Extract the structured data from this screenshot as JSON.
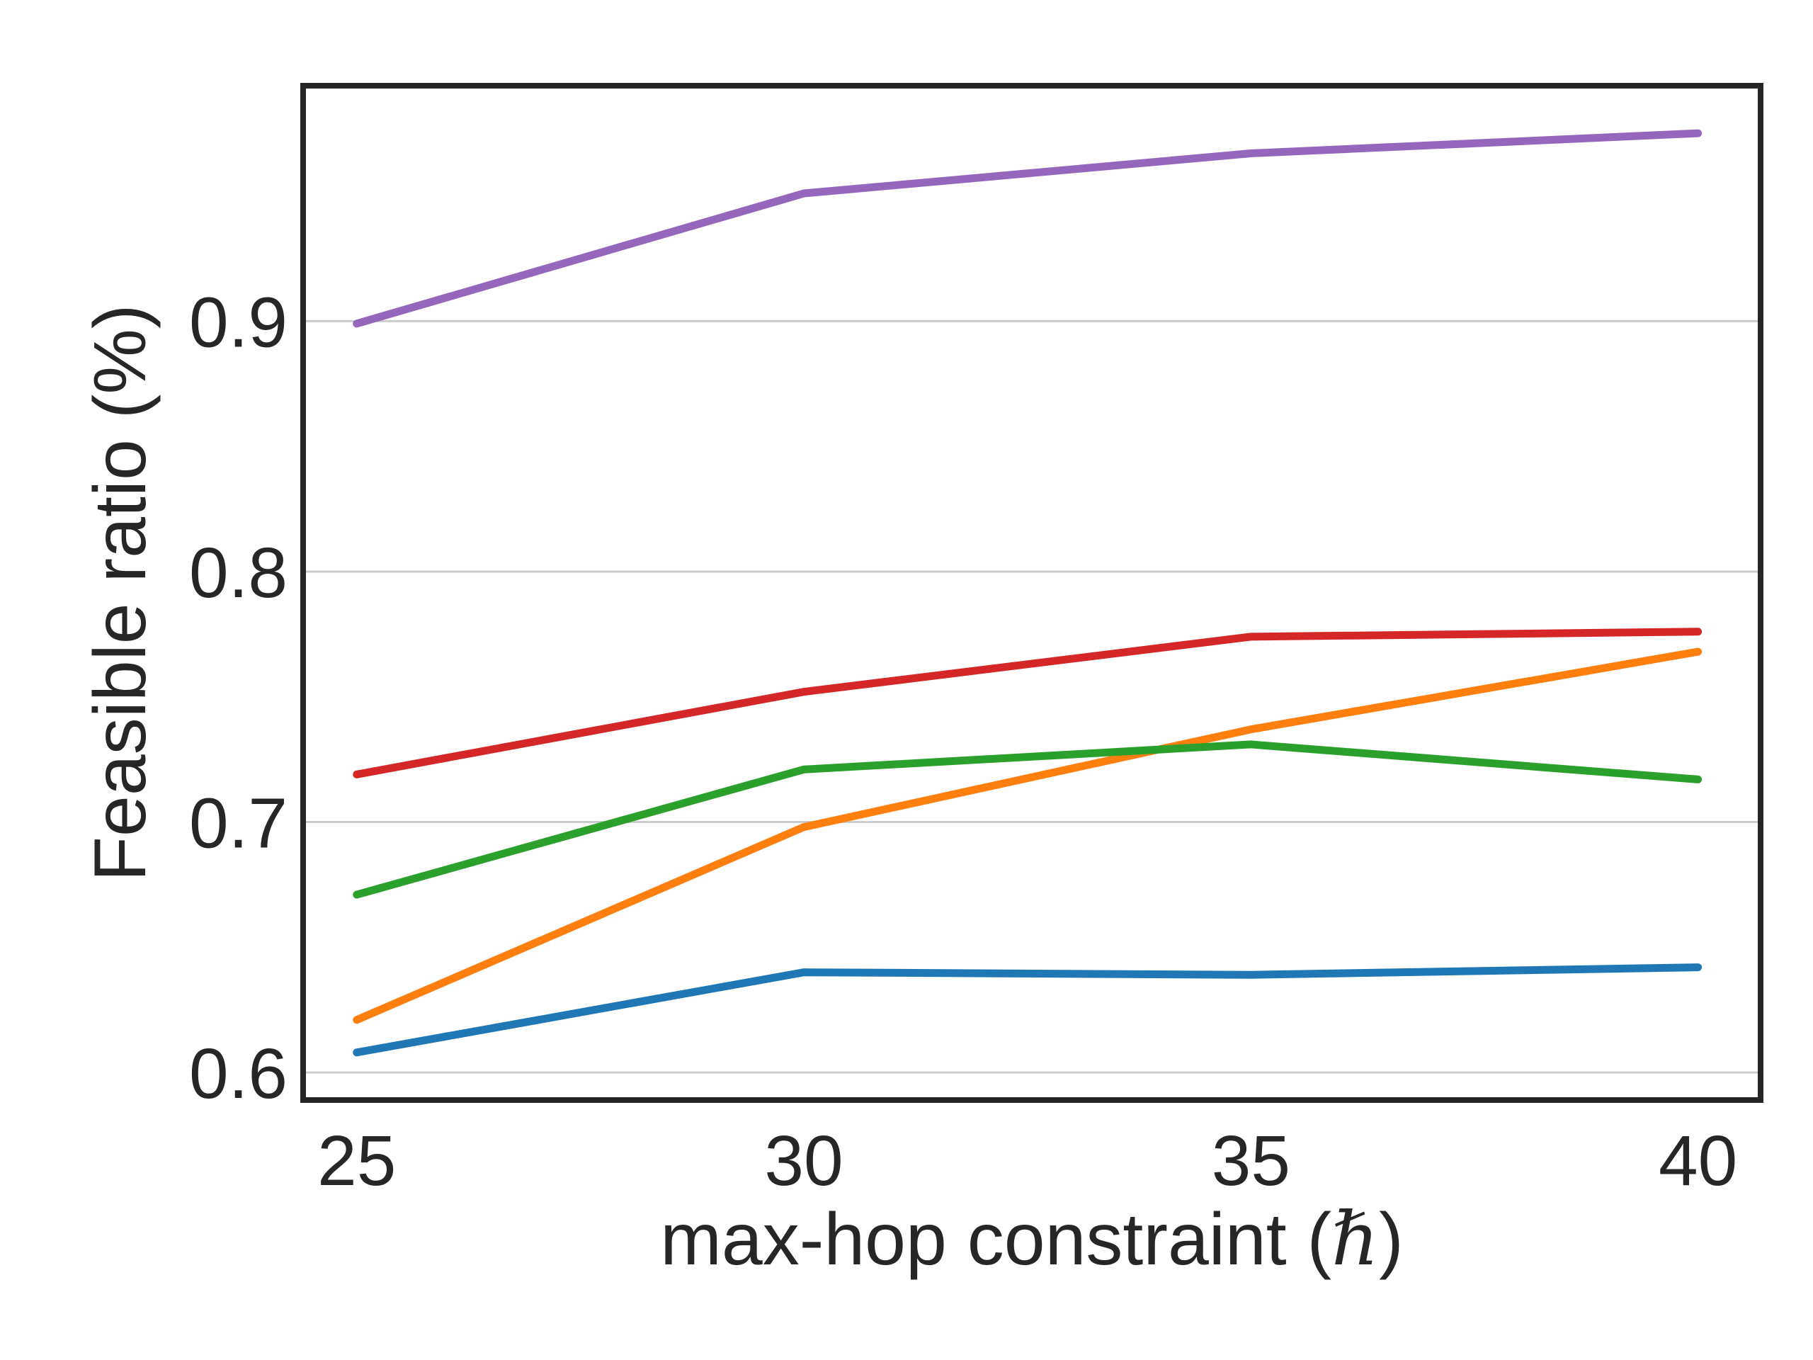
{
  "chart_data": {
    "type": "line",
    "title": "",
    "xlabel_prefix": "max-hop constraint (",
    "xlabel_symbol": "ℏ",
    "xlabel_suffix": ")",
    "ylabel": "Feasible ratio (%)",
    "x": [
      25,
      30,
      35,
      40
    ],
    "x_ticks": [
      "25",
      "30",
      "35",
      "40"
    ],
    "y_ticks": [
      0.6,
      0.7,
      0.8,
      0.9
    ],
    "y_tick_labels": [
      "0.6",
      "0.7",
      "0.8",
      "0.9"
    ],
    "xlim": [
      24.4,
      40.7
    ],
    "ylim": [
      0.589,
      0.994
    ],
    "grid": "horizontal",
    "legend": "none",
    "series": [
      {
        "color": "#1f77b4",
        "values": [
          0.608,
          0.64,
          0.639,
          0.642
        ]
      },
      {
        "color": "#ff7f0e",
        "values": [
          0.621,
          0.698,
          0.737,
          0.768
        ]
      },
      {
        "color": "#2ca02c",
        "values": [
          0.671,
          0.721,
          0.731,
          0.717
        ]
      },
      {
        "color": "#d62728",
        "values": [
          0.719,
          0.752,
          0.774,
          0.776
        ]
      },
      {
        "color": "#9467bd",
        "values": [
          0.899,
          0.951,
          0.967,
          0.975
        ]
      }
    ]
  }
}
